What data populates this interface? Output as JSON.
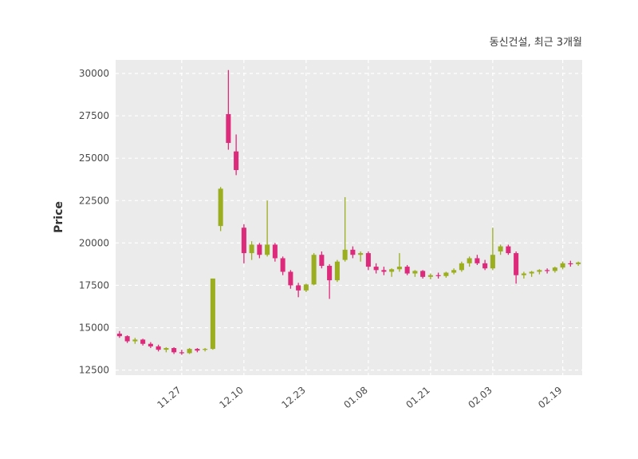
{
  "chart_data": {
    "type": "candlestick",
    "title": "동신건설, 최근 3개월",
    "ylabel": "Price",
    "ylim": [
      12200,
      30800
    ],
    "yticks": [
      12500,
      15000,
      17500,
      20000,
      22500,
      25000,
      27500,
      30000
    ],
    "xticks": [
      {
        "index": 8,
        "label": "11.27"
      },
      {
        "index": 16,
        "label": "12.10"
      },
      {
        "index": 24,
        "label": "12.23"
      },
      {
        "index": 32,
        "label": "01.08"
      },
      {
        "index": 40,
        "label": "01.21"
      },
      {
        "index": 48,
        "label": "02.03"
      },
      {
        "index": 57,
        "label": "02.19"
      }
    ],
    "grid": "dashed-white-on-gray-panel",
    "legend": "none",
    "up_color": "#9bae1f",
    "down_color": "#dd2a7b",
    "panel_bg": "#ebebeb",
    "ohlc": [
      [
        14650,
        14800,
        14400,
        14500
      ],
      [
        14500,
        14550,
        14100,
        14200
      ],
      [
        14200,
        14400,
        14050,
        14300
      ],
      [
        14300,
        14350,
        13950,
        14050
      ],
      [
        14050,
        14150,
        13800,
        13900
      ],
      [
        13900,
        14000,
        13600,
        13700
      ],
      [
        13700,
        13850,
        13550,
        13800
      ],
      [
        13800,
        13850,
        13450,
        13550
      ],
      [
        13550,
        13700,
        13400,
        13500
      ],
      [
        13500,
        13800,
        13450,
        13750
      ],
      [
        13750,
        13800,
        13550,
        13650
      ],
      [
        13700,
        13800,
        13600,
        13750
      ],
      [
        13750,
        17900,
        13700,
        17900
      ],
      [
        21000,
        23300,
        20700,
        23200
      ],
      [
        27600,
        30200,
        25500,
        25900
      ],
      [
        25400,
        26400,
        24000,
        24300
      ],
      [
        20900,
        21100,
        18800,
        19400
      ],
      [
        19400,
        20100,
        19000,
        19900
      ],
      [
        19900,
        20000,
        19100,
        19300
      ],
      [
        19300,
        22500,
        19200,
        19900
      ],
      [
        19900,
        20000,
        18900,
        19100
      ],
      [
        19100,
        19200,
        18100,
        18300
      ],
      [
        18300,
        18400,
        17300,
        17500
      ],
      [
        17500,
        17650,
        16800,
        17200
      ],
      [
        17200,
        17600,
        17100,
        17550
      ],
      [
        17550,
        19400,
        17500,
        19300
      ],
      [
        19300,
        19500,
        18500,
        18650
      ],
      [
        18650,
        18750,
        16700,
        17800
      ],
      [
        17800,
        19000,
        17700,
        18900
      ],
      [
        19000,
        22700,
        18900,
        19600
      ],
      [
        19600,
        19800,
        19100,
        19300
      ],
      [
        19300,
        19500,
        18900,
        19400
      ],
      [
        19400,
        19500,
        18400,
        18600
      ],
      [
        18600,
        18800,
        18200,
        18400
      ],
      [
        18400,
        18600,
        18100,
        18300
      ],
      [
        18300,
        18500,
        18000,
        18450
      ],
      [
        18450,
        19400,
        18300,
        18600
      ],
      [
        18600,
        18700,
        18100,
        18200
      ],
      [
        18200,
        18400,
        18000,
        18350
      ],
      [
        18350,
        18400,
        17900,
        18000
      ],
      [
        18000,
        18200,
        17850,
        18100
      ],
      [
        18100,
        18250,
        17900,
        18050
      ],
      [
        18050,
        18300,
        17950,
        18250
      ],
      [
        18250,
        18500,
        18150,
        18400
      ],
      [
        18400,
        18900,
        18300,
        18800
      ],
      [
        18800,
        19200,
        18600,
        19100
      ],
      [
        19100,
        19300,
        18700,
        18800
      ],
      [
        18800,
        19000,
        18400,
        18500
      ],
      [
        18500,
        20900,
        18400,
        19300
      ],
      [
        19500,
        19900,
        19300,
        19800
      ],
      [
        19800,
        19900,
        19300,
        19400
      ],
      [
        19400,
        19500,
        17600,
        18100
      ],
      [
        18100,
        18300,
        17900,
        18200
      ],
      [
        18200,
        18350,
        18000,
        18300
      ],
      [
        18300,
        18450,
        18150,
        18400
      ],
      [
        18400,
        18500,
        18200,
        18350
      ],
      [
        18350,
        18600,
        18250,
        18550
      ],
      [
        18550,
        18900,
        18450,
        18800
      ],
      [
        18800,
        18950,
        18600,
        18750
      ],
      [
        18750,
        18900,
        18650,
        18850
      ]
    ]
  }
}
